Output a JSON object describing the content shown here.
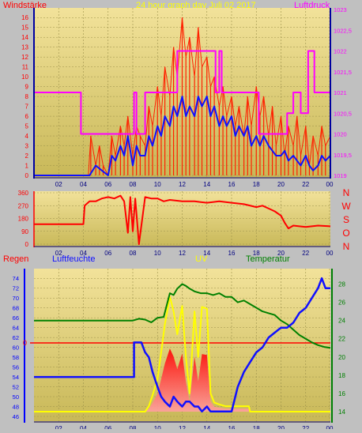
{
  "header": {
    "left_title": "Windstärke",
    "center_title": "24 hour graph day   Juli 02 2017",
    "right_title": "Luftdruck"
  },
  "labels": {
    "regen": "Regen",
    "luftfeuchte": "Luftfeuchte",
    "uv": "UV",
    "temperatur": "Temperatur",
    "uv_zero": "0"
  },
  "compass": [
    "N",
    "W",
    "S",
    "O",
    "N"
  ],
  "colors": {
    "background": "#c0c0c0",
    "plot_top": "#f2e29a",
    "plot_bottom": "#c8b858",
    "grid": "#9a8f4a",
    "wind": "#ff2000",
    "wind_avg": "#1010ff",
    "pressure": "#ff00ff",
    "direction": "#ff0000",
    "humidity": "#1010ff",
    "temperature": "#008000",
    "uv": "#ffff00",
    "rain": "#ff0000",
    "yellow_text": "#ffff00"
  },
  "chart_data": [
    {
      "type": "line",
      "name": "wind-pressure",
      "x_ticks": [
        "02",
        "04",
        "06",
        "08",
        "10",
        "12",
        "14",
        "16",
        "18",
        "20",
        "22",
        "00"
      ],
      "y_left_ticks": [
        "0",
        "1",
        "2",
        "3",
        "4",
        "5",
        "6",
        "7",
        "8",
        "9",
        "10",
        "11",
        "12",
        "13",
        "14",
        "15",
        "16"
      ],
      "y_left_range": [
        0,
        16.5
      ],
      "y_right_ticks": [
        "1019",
        "1019,5",
        "1020",
        "1020,5",
        "1021",
        "1021,5",
        "1022",
        "1022,5",
        "1023"
      ],
      "y_right_range": [
        1019,
        1023
      ],
      "series": [
        {
          "key": "gust",
          "x": [
            0,
            4,
            4.4,
            4.6,
            5,
            5.3,
            5.6,
            6,
            6.3,
            6.6,
            7,
            7.3,
            7.6,
            8,
            8.3,
            8.6,
            9,
            9.3,
            9.6,
            10,
            10.3,
            10.6,
            11,
            11.3,
            11.6,
            12,
            12.3,
            12.6,
            13,
            13.3,
            13.6,
            14,
            14.3,
            14.6,
            15,
            15.3,
            15.6,
            16,
            16.3,
            16.6,
            17,
            17.3,
            17.6,
            18,
            18.3,
            18.6,
            19,
            19.3,
            19.6,
            20,
            20.3,
            20.6,
            21,
            21.3,
            21.6,
            22,
            22.3,
            22.6,
            23,
            23.3,
            23.6,
            24
          ],
          "values": [
            0,
            0,
            0,
            4,
            1,
            3,
            1,
            0,
            4,
            2,
            5,
            3,
            6,
            2,
            5,
            4,
            3,
            7,
            5,
            9,
            6,
            11,
            8,
            13,
            10,
            16,
            12,
            14,
            10,
            15,
            11,
            12,
            9,
            10,
            7,
            9,
            6,
            8,
            5,
            7,
            4,
            8,
            5,
            9,
            6,
            8,
            4,
            7,
            3,
            6,
            2,
            5,
            3,
            6,
            2,
            5,
            1,
            4,
            2,
            5,
            3,
            4
          ]
        },
        {
          "key": "average",
          "x": [
            0,
            4,
            4.5,
            5,
            5.5,
            6,
            6.3,
            6.6,
            7,
            7.3,
            7.6,
            8,
            8.3,
            8.6,
            9,
            9.3,
            9.6,
            10,
            10.3,
            10.6,
            11,
            11.3,
            11.6,
            12,
            12.3,
            12.6,
            13,
            13.3,
            13.6,
            14,
            14.3,
            14.6,
            15,
            15.3,
            15.6,
            16,
            16.3,
            16.6,
            17,
            17.3,
            17.6,
            18,
            18.3,
            18.6,
            19,
            19.3,
            19.6,
            20,
            20.3,
            20.6,
            21,
            21.3,
            21.6,
            22,
            22.3,
            22.6,
            23,
            23.3,
            23.6,
            24
          ],
          "values": [
            0,
            0,
            0,
            1,
            0.5,
            0,
            2,
            1.5,
            3,
            2,
            4,
            1,
            3,
            2,
            2,
            4,
            3,
            5,
            4,
            6,
            5,
            7,
            6,
            8,
            6,
            7,
            6,
            8,
            7,
            8,
            6,
            7,
            5,
            6,
            5,
            6,
            4,
            5,
            4,
            5,
            3,
            4,
            3,
            4,
            3,
            2.5,
            2,
            2,
            2.5,
            1.5,
            2,
            1.5,
            1,
            2,
            1,
            0.5,
            1,
            2,
            1.5,
            2
          ]
        },
        {
          "key": "pressure",
          "x": [
            0,
            3.8,
            3.8,
            8.1,
            8.1,
            8.3,
            8.3,
            9,
            9,
            10,
            10,
            11.6,
            11.6,
            14.7,
            14.7,
            15,
            15,
            15.2,
            15.2,
            17.9,
            17.9,
            18.2,
            18.2,
            19.2,
            19.2,
            20.5,
            20.5,
            21,
            21,
            21.6,
            21.6,
            22.2,
            22.2,
            22.7,
            22.7,
            24
          ],
          "values": [
            1021,
            1021,
            1020,
            1020,
            1021,
            1021,
            1020,
            1020,
            1021,
            1021,
            1021,
            1021,
            1022,
            1022,
            1021,
            1021,
            1022,
            1022,
            1021,
            1021,
            1021,
            1021,
            1020,
            1020,
            1020,
            1020,
            1020.5,
            1020.5,
            1021,
            1021,
            1020.5,
            1020.5,
            1022,
            1022,
            1021,
            1021
          ]
        }
      ]
    },
    {
      "type": "line",
      "name": "wind-direction",
      "y_ticks": [
        "0",
        "90",
        "180",
        "270",
        "360"
      ],
      "y_range": [
        0,
        360
      ],
      "series": [
        {
          "key": "direction",
          "x": [
            0,
            4,
            4.1,
            4.5,
            5,
            5.5,
            6,
            6.5,
            7,
            7.3,
            7.6,
            7.8,
            8,
            8.2,
            8.5,
            9,
            9.5,
            10,
            10.5,
            11,
            12,
            13,
            14,
            15,
            16,
            17,
            18,
            18.5,
            19,
            19.5,
            20,
            20.3,
            20.6,
            21,
            22,
            23,
            24
          ],
          "values": [
            140,
            140,
            270,
            300,
            300,
            320,
            330,
            320,
            340,
            300,
            80,
            330,
            90,
            320,
            0,
            330,
            320,
            320,
            300,
            310,
            300,
            300,
            290,
            300,
            290,
            280,
            260,
            270,
            250,
            230,
            200,
            150,
            110,
            130,
            120,
            130,
            125
          ]
        }
      ]
    },
    {
      "type": "line",
      "name": "humidity-temperature-uv",
      "y_left_ticks": [
        "46",
        "48",
        "50",
        "52",
        "54",
        "56",
        "58",
        "60",
        "62",
        "64",
        "66",
        "68",
        "70",
        "72",
        "74"
      ],
      "y_left_range": [
        46,
        75
      ],
      "y_right_ticks": [
        "14",
        "16",
        "18",
        "20",
        "22",
        "24",
        "26",
        "28"
      ],
      "y_right_range": [
        14,
        29
      ],
      "series": [
        {
          "key": "humidity",
          "x": [
            0,
            8.1,
            8.1,
            8.7,
            9,
            9.3,
            9.6,
            10,
            10.3,
            10.6,
            11,
            11.3,
            11.6,
            12,
            12.3,
            12.6,
            13,
            13.3,
            13.6,
            14,
            14.3,
            14.6,
            15,
            15.5,
            16,
            16.5,
            17,
            17.5,
            18,
            18.5,
            19,
            19.5,
            20,
            20.5,
            21,
            21.5,
            22,
            22.5,
            23,
            23.3,
            23.6,
            24
          ],
          "values": [
            54,
            54,
            61,
            61,
            59,
            58,
            55,
            52,
            50,
            49,
            48,
            50,
            49,
            48,
            49,
            49,
            48,
            48,
            47,
            48,
            47,
            47,
            47,
            47,
            47,
            52,
            55,
            57,
            59,
            60,
            62,
            63,
            64,
            64,
            65,
            67,
            68,
            70,
            72,
            74,
            72,
            72
          ]
        },
        {
          "key": "temperature",
          "x": [
            0,
            8,
            8.5,
            9,
            9.5,
            10,
            10.5,
            11,
            11.3,
            11.6,
            12,
            12.3,
            12.6,
            13,
            13.5,
            14,
            14.5,
            15,
            15.5,
            16,
            16.5,
            17,
            17.5,
            18,
            18.5,
            19,
            19.5,
            20,
            20.5,
            21,
            21.5,
            22,
            22.5,
            23,
            23.5,
            24
          ],
          "values": [
            24,
            24,
            24.2,
            24.1,
            23.8,
            24.3,
            24.4,
            27,
            26.8,
            27.5,
            28,
            27.8,
            27.5,
            27.2,
            27,
            27,
            26.8,
            27,
            26.6,
            26.6,
            26,
            26.2,
            25.8,
            25.4,
            25,
            24.8,
            24.6,
            24,
            23.6,
            23,
            22.4,
            22,
            21.6,
            21.3,
            21.1,
            21
          ]
        },
        {
          "key": "uv",
          "x": [
            0,
            8,
            9,
            9.3,
            9.6,
            10,
            10.3,
            10.6,
            11,
            11.3,
            11.6,
            12,
            12.3,
            12.6,
            13,
            13.3,
            13.6,
            14,
            14.3,
            14.6,
            15,
            15.5,
            16,
            16.5,
            17,
            17.4,
            17.5,
            24
          ],
          "values": [
            14,
            14,
            14,
            14.6,
            15.8,
            17.6,
            20.5,
            23.6,
            26.6,
            25,
            22.5,
            25.6,
            20,
            16,
            25,
            20,
            25.5,
            25.3,
            16,
            15,
            14.8,
            14.6,
            14.6,
            14.6,
            14.6,
            14.6,
            14,
            14
          ]
        }
      ]
    }
  ]
}
